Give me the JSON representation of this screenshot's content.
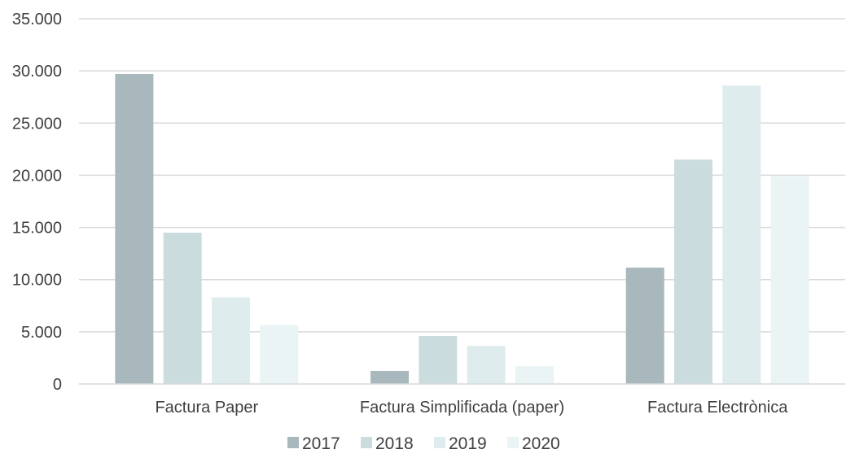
{
  "chart_data": {
    "type": "bar",
    "title": "",
    "xlabel": "",
    "ylabel": "",
    "categories": [
      "Factura Paper",
      "Factura Simplificada (paper)",
      "Factura Electrònica"
    ],
    "series": [
      {
        "name": "2017",
        "color": "#a9b8bc",
        "values": [
          29700,
          1250,
          11150
        ]
      },
      {
        "name": "2018",
        "color": "#cbdcdf",
        "values": [
          14500,
          4600,
          21500
        ]
      },
      {
        "name": "2019",
        "color": "#dfecee",
        "values": [
          8300,
          3650,
          28600
        ]
      },
      {
        "name": "2020",
        "color": "#eaf4f5",
        "values": [
          5650,
          1700,
          19900
        ]
      }
    ],
    "ylim": [
      0,
      35000
    ],
    "yticks": [
      0,
      5000,
      10000,
      15000,
      20000,
      25000,
      30000,
      35000
    ],
    "ytick_labels": [
      "0",
      "5.000",
      "10.000",
      "15.000",
      "20.000",
      "25.000",
      "30.000",
      "35.000"
    ],
    "grid": true,
    "legend_position": "bottom"
  }
}
